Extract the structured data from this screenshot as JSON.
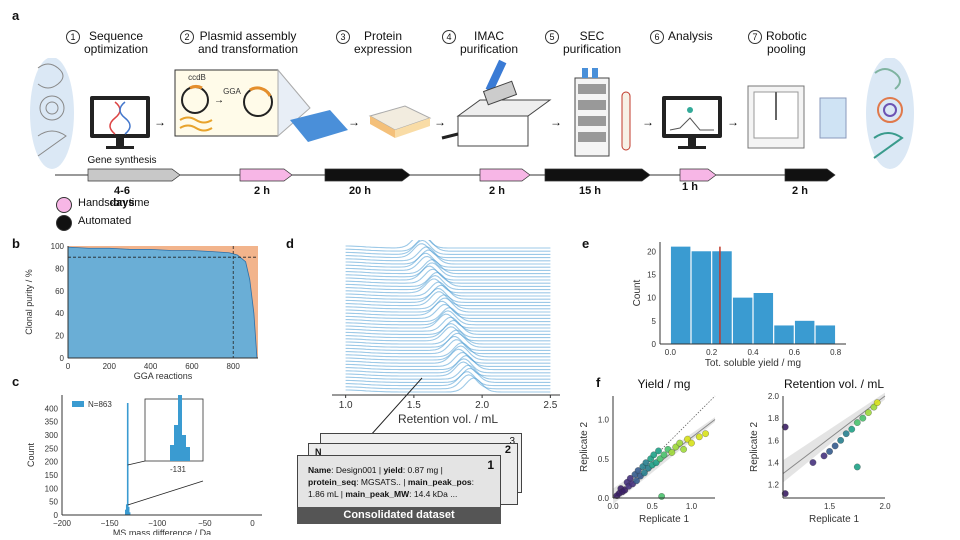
{
  "panel_a": {
    "label": "a",
    "steps": [
      {
        "num": "1",
        "line1": "Sequence",
        "line2": "optimization"
      },
      {
        "num": "2",
        "line1": "Plasmid assembly",
        "line2": "and transformation"
      },
      {
        "num": "3",
        "line1": "Protein",
        "line2": "expression"
      },
      {
        "num": "4",
        "line1": "IMAC",
        "line2": "purification"
      },
      {
        "num": "5",
        "line1": "SEC",
        "line2": "purification"
      },
      {
        "num": "6",
        "line1": "Analysis",
        "line2": ""
      },
      {
        "num": "7",
        "line1": "Robotic",
        "line2": "pooling"
      }
    ],
    "plasmid_labels": {
      "ccdb": "ccdB",
      "gga": "GGA"
    },
    "gene_synthesis": "Gene synthesis",
    "times": [
      "4-6 days",
      "2 h",
      "20 h",
      "2 h",
      "15 h",
      "1 h",
      "2 h"
    ],
    "legend": [
      {
        "label": "Hands-on time",
        "color": "#f7b6e6"
      },
      {
        "label": "Automated",
        "color": "#111111"
      }
    ]
  },
  "panel_b": {
    "label": "b",
    "ylabel": "Clonal purity / %",
    "xlabel": "GGA reactions",
    "xticks": [
      "0",
      "200",
      "400",
      "600",
      "800"
    ],
    "yticks": [
      "0",
      "20",
      "40",
      "60",
      "80",
      "100"
    ]
  },
  "panel_c": {
    "label": "c",
    "legend": "N=863",
    "ylabel": "Count",
    "xlabel": "MS mass difference / Da",
    "xticks": [
      "−200",
      "−150",
      "−100",
      "−50",
      "0"
    ],
    "yticks": [
      "0",
      "50",
      "100",
      "150",
      "200",
      "250",
      "300",
      "350",
      "400"
    ],
    "inset_tick": "-131"
  },
  "panel_d": {
    "label": "d",
    "xlabel": "Retention vol. / mL",
    "xticks": [
      "1.0",
      "1.5",
      "2.0",
      "2.5"
    ],
    "card_numbers": [
      "1",
      "2",
      "3"
    ],
    "card1_lines": [
      [
        {
          "b": "Name"
        },
        {
          "t": ": Design001 | "
        },
        {
          "b": "yield"
        },
        {
          "t": ": 0.87 mg |"
        }
      ],
      [
        {
          "b": "protein_seq"
        },
        {
          "t": ": MGSATS.. | "
        },
        {
          "b": "main_peak_pos"
        },
        {
          "t": ":"
        }
      ],
      [
        {
          "t": "1.86 mL | "
        },
        {
          "b": "main_peak_MW"
        },
        {
          "t": ": 14.4 kDa ..."
        }
      ]
    ],
    "card_back_fragment": "N",
    "footer": "Consolidated dataset"
  },
  "panel_e": {
    "label": "e",
    "ylabel": "Count",
    "xlabel": "Tot. soluble yield / mg",
    "xticks": [
      "0.0",
      "0.2",
      "0.4",
      "0.6",
      "0.8"
    ],
    "yticks": [
      "0",
      "5",
      "10",
      "15",
      "20"
    ]
  },
  "panel_f": {
    "label": "f",
    "left_title": "Yield / mg",
    "right_title": "Retention vol. / mL",
    "xlabel": "Replicate 1",
    "ylabel": "Replicate 2",
    "left_xticks": [
      "0.0",
      "0.5",
      "1.0"
    ],
    "left_yticks": [
      "0.0",
      "0.5",
      "1.0"
    ],
    "right_xticks": [
      "1.5",
      "2.0"
    ],
    "right_yticks": [
      "1.2",
      "1.4",
      "1.6",
      "1.8",
      "2.0"
    ]
  },
  "chart_data": [
    {
      "panel": "b",
      "type": "area",
      "x": [
        0,
        100,
        200,
        300,
        400,
        500,
        600,
        700,
        780,
        820,
        860,
        880,
        900,
        915
      ],
      "y": [
        99,
        98,
        98,
        97,
        97,
        96,
        96,
        95,
        94,
        92,
        86,
        70,
        40,
        0
      ],
      "xlim": [
        0,
        920
      ],
      "ylim": [
        0,
        100
      ],
      "reference_lines": {
        "y": 90,
        "x": 800
      },
      "colors": {
        "area": "#6aaed6",
        "background": "#f2b48c"
      }
    },
    {
      "panel": "c",
      "type": "bar",
      "legend": "N=863",
      "x": [
        -133,
        -132,
        -131,
        -130,
        -129
      ],
      "values": [
        20,
        40,
        420,
        30,
        10
      ],
      "xlim": [
        -200,
        10
      ],
      "ylim": [
        0,
        450
      ],
      "color": "#3a9bd1"
    },
    {
      "panel": "e",
      "type": "bar",
      "categories": [
        "0.0-0.1",
        "0.1-0.2",
        "0.2-0.3",
        "0.3-0.4",
        "0.4-0.5",
        "0.5-0.6",
        "0.6-0.7",
        "0.7-0.8"
      ],
      "bin_edges": [
        0.0,
        0.1,
        0.2,
        0.3,
        0.4,
        0.5,
        0.6,
        0.7,
        0.8
      ],
      "values": [
        21,
        20,
        20,
        10,
        11,
        4,
        5,
        4
      ],
      "xlim": [
        -0.05,
        0.85
      ],
      "ylim": [
        0,
        22
      ],
      "median_line": 0.24,
      "colors": {
        "bar": "#3a9bd1",
        "line": "#c0392b"
      }
    },
    {
      "panel": "f-left",
      "type": "scatter",
      "title": "Yield / mg",
      "xlim": [
        0,
        1.3
      ],
      "ylim": [
        0,
        1.3
      ],
      "points": [
        [
          0.05,
          0.03
        ],
        [
          0.08,
          0.06
        ],
        [
          0.1,
          0.12
        ],
        [
          0.12,
          0.08
        ],
        [
          0.15,
          0.1
        ],
        [
          0.18,
          0.2
        ],
        [
          0.2,
          0.15
        ],
        [
          0.22,
          0.25
        ],
        [
          0.25,
          0.18
        ],
        [
          0.28,
          0.3
        ],
        [
          0.3,
          0.22
        ],
        [
          0.32,
          0.35
        ],
        [
          0.35,
          0.28
        ],
        [
          0.38,
          0.4
        ],
        [
          0.4,
          0.32
        ],
        [
          0.42,
          0.45
        ],
        [
          0.45,
          0.38
        ],
        [
          0.48,
          0.5
        ],
        [
          0.5,
          0.42
        ],
        [
          0.52,
          0.55
        ],
        [
          0.55,
          0.45
        ],
        [
          0.58,
          0.6
        ],
        [
          0.6,
          0.5
        ],
        [
          0.62,
          0.02
        ],
        [
          0.65,
          0.55
        ],
        [
          0.7,
          0.62
        ],
        [
          0.75,
          0.58
        ],
        [
          0.8,
          0.65
        ],
        [
          0.85,
          0.7
        ],
        [
          0.9,
          0.62
        ],
        [
          0.95,
          0.75
        ],
        [
          1.0,
          0.7
        ],
        [
          1.1,
          0.78
        ],
        [
          1.18,
          0.82
        ]
      ],
      "regression_line": [
        [
          0,
          0
        ],
        [
          1.3,
          1.0
        ]
      ],
      "identity_line": [
        [
          0,
          0
        ],
        [
          1.3,
          1.3
        ]
      ]
    },
    {
      "panel": "f-right",
      "type": "scatter",
      "title": "Retention vol. / mL",
      "xlim": [
        1.08,
        2.0
      ],
      "ylim": [
        1.08,
        2.0
      ],
      "points": [
        [
          1.1,
          1.12
        ],
        [
          1.1,
          1.72
        ],
        [
          1.35,
          1.4
        ],
        [
          1.45,
          1.46
        ],
        [
          1.5,
          1.5
        ],
        [
          1.55,
          1.55
        ],
        [
          1.6,
          1.6
        ],
        [
          1.65,
          1.66
        ],
        [
          1.7,
          1.7
        ],
        [
          1.75,
          1.36
        ],
        [
          1.75,
          1.76
        ],
        [
          1.8,
          1.8
        ],
        [
          1.85,
          1.85
        ],
        [
          1.9,
          1.9
        ],
        [
          1.93,
          1.94
        ]
      ],
      "regression_line": [
        [
          1.08,
          1.3
        ],
        [
          2.0,
          2.0
        ]
      ]
    }
  ]
}
